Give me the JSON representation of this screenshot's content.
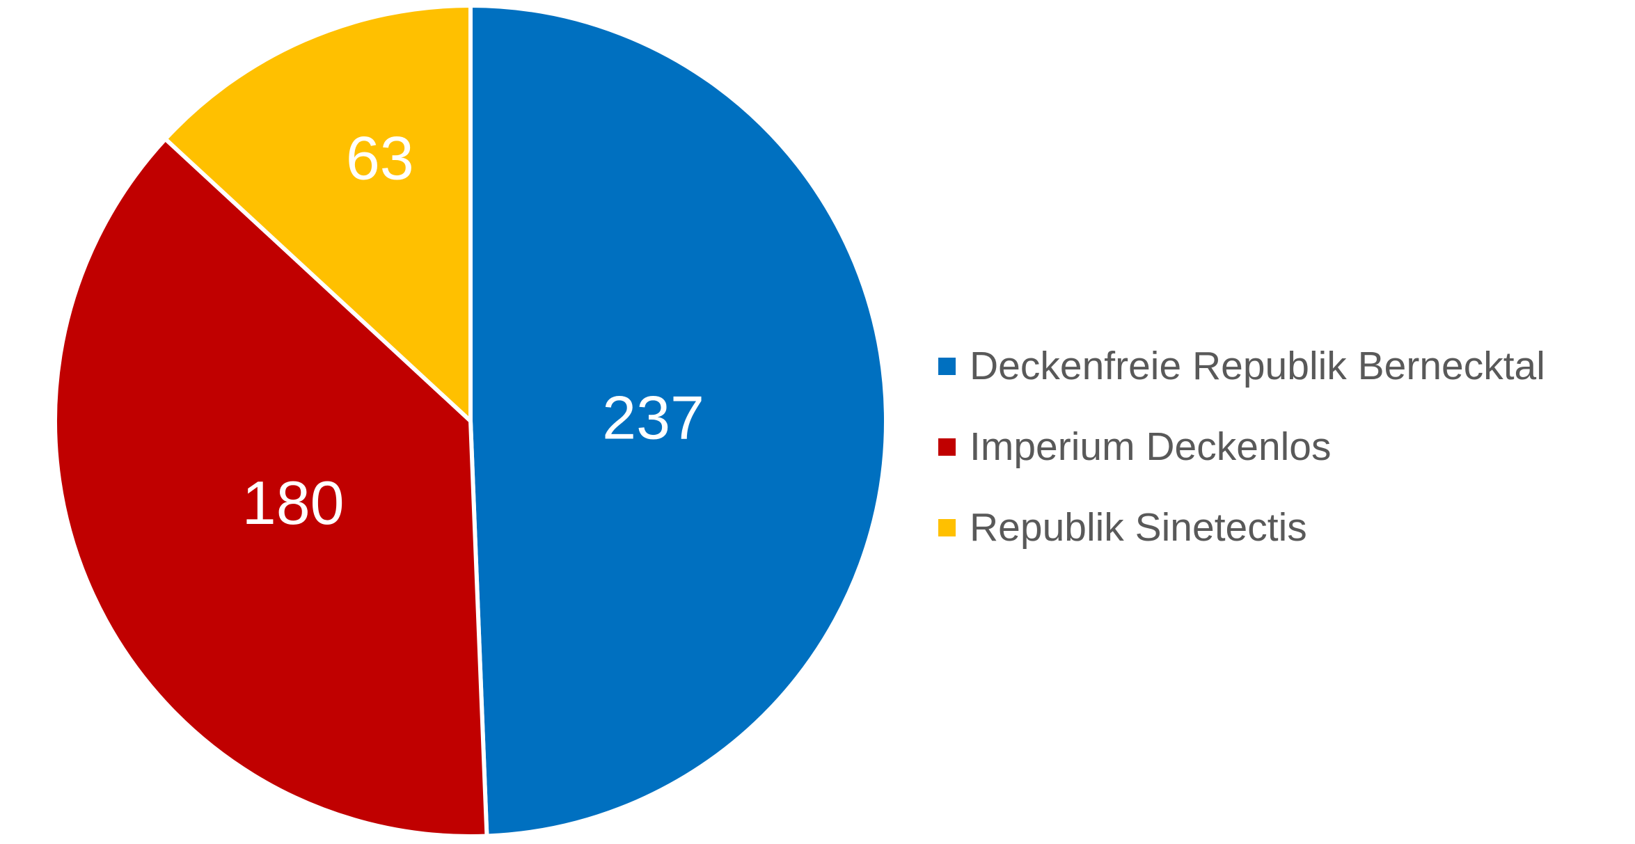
{
  "chart_data": {
    "type": "pie",
    "title": "",
    "categories": [
      "Deckenfreie Republik Bernecktal",
      "Imperium Deckenlos",
      "Republik Sinetectis"
    ],
    "values": [
      237,
      180,
      63
    ],
    "data_labels": [
      "237",
      "180",
      "63"
    ],
    "colors": [
      "#0070C0",
      "#C00000",
      "#FFC000"
    ],
    "total": 480,
    "start_angle_deg": 0,
    "direction": "clockwise",
    "slice_border_color": "#FFFFFF",
    "data_label_color": "#FFFFFF",
    "background_color": "#FFFFFF",
    "legend": {
      "position": "right",
      "text_color": "#595959",
      "entries": [
        "Deckenfreie Republik Bernecktal",
        "Imperium Deckenlos",
        "Republik Sinetectis"
      ]
    }
  }
}
